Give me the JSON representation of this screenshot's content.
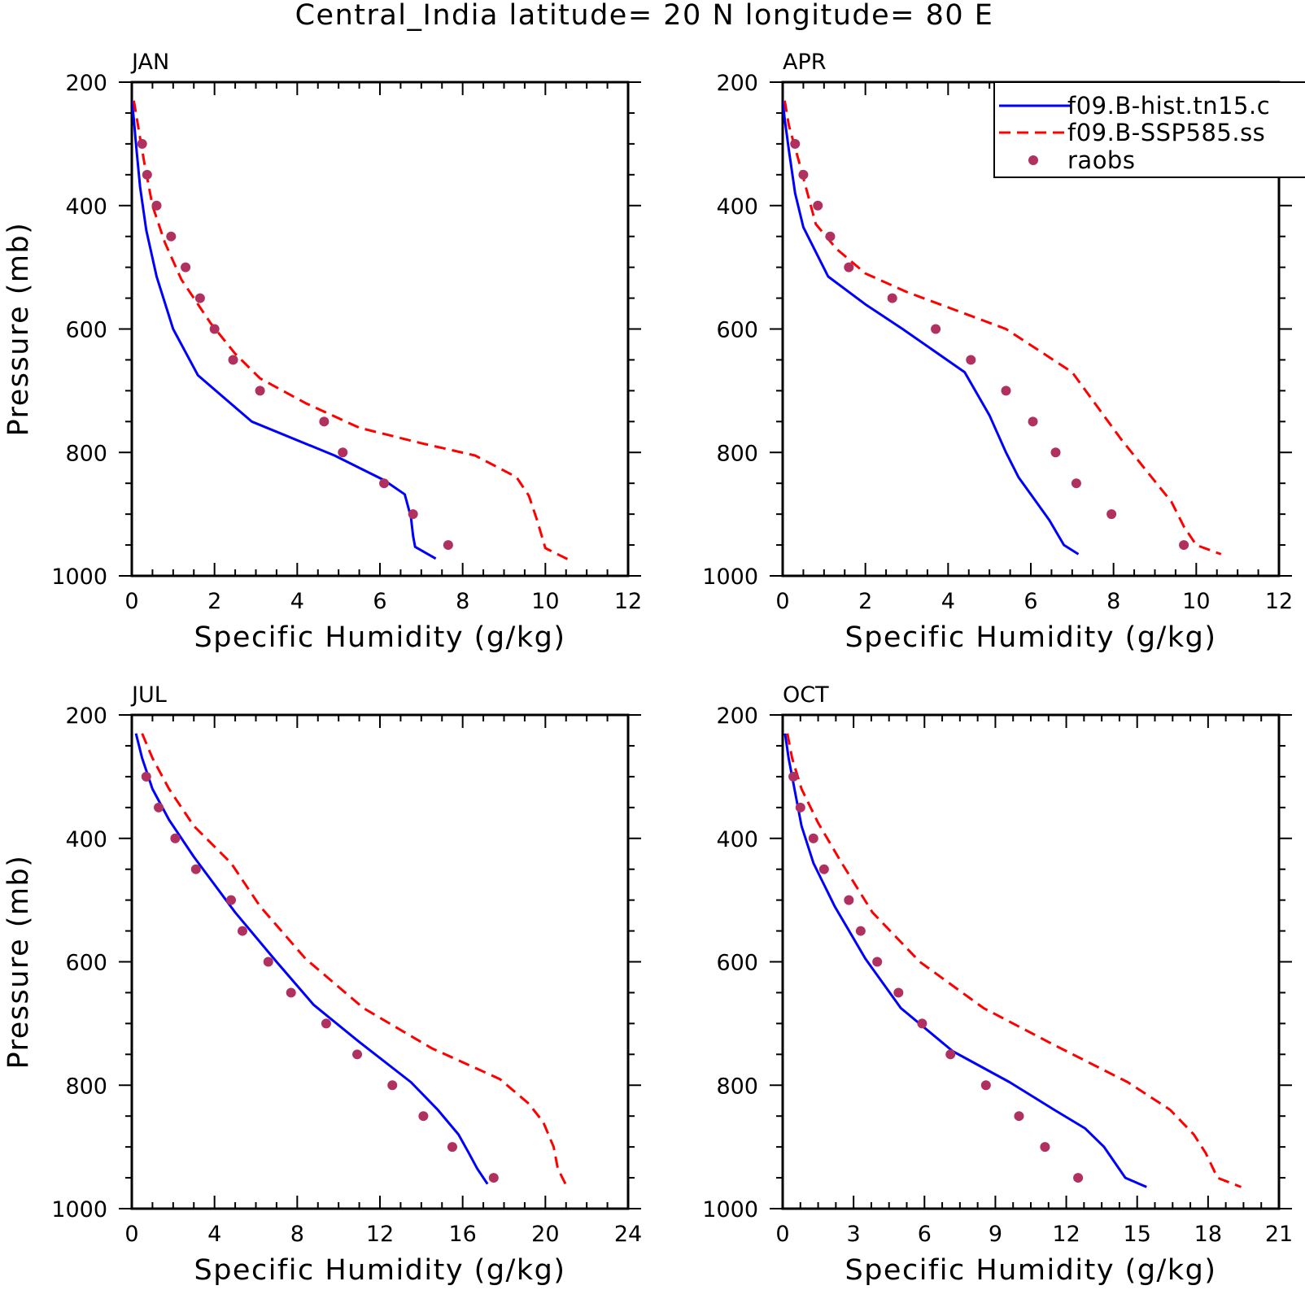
{
  "title": "Central_India  latitude= 20 N longitude= 80 E",
  "legend": {
    "entries": [
      {
        "label": "f09.B-hist.tn15.c",
        "style": "solid",
        "color": "#0000ff"
      },
      {
        "label": "f09.B-SSP585.ss",
        "style": "dashed",
        "color": "#ff0000"
      },
      {
        "label": "raobs",
        "style": "dot",
        "color": "#b03060"
      }
    ]
  },
  "colors": {
    "model_hist": "#0000ff",
    "model_ssp": "#ff0000",
    "obs": "#b03060"
  },
  "chart_data": [
    {
      "type": "line",
      "panel": "JAN",
      "xlabel": "Specific Humidity (g/kg)",
      "ylabel": "Pressure (mb)",
      "xlim": [
        0,
        12
      ],
      "xticks": [
        0,
        2,
        4,
        6,
        8,
        10,
        12
      ],
      "ylim": [
        1000,
        200
      ],
      "yticks": [
        200,
        400,
        600,
        800,
        1000
      ],
      "series": [
        {
          "name": "f09.B-hist.tn15.c",
          "style": "solid",
          "x": [
            0.0,
            0.05,
            0.1,
            0.2,
            0.35,
            0.6,
            1.0,
            1.6,
            2.9,
            4.9,
            6.1,
            6.6,
            6.75,
            6.8,
            6.85,
            7.35
          ],
          "y": [
            230,
            260,
            300,
            370,
            440,
            515,
            600,
            675,
            750,
            805,
            845,
            868,
            905,
            935,
            953,
            972
          ]
        },
        {
          "name": "f09.B-SSP585.ss",
          "style": "dashed",
          "x": [
            0.05,
            0.15,
            0.3,
            0.5,
            0.8,
            1.2,
            1.9,
            2.5,
            3.1,
            4.2,
            5.5,
            7.0,
            8.3,
            9.3,
            9.6,
            9.8,
            10.0,
            10.6
          ],
          "y": [
            230,
            270,
            330,
            400,
            460,
            520,
            590,
            640,
            680,
            720,
            760,
            785,
            805,
            840,
            870,
            910,
            955,
            975
          ]
        },
        {
          "name": "raobs",
          "style": "dot",
          "x": [
            0.25,
            0.37,
            0.6,
            0.95,
            1.3,
            1.65,
            2.0,
            2.45,
            3.1,
            4.65,
            5.1,
            6.1,
            6.8,
            7.65
          ],
          "y": [
            300,
            350,
            400,
            450,
            500,
            550,
            600,
            650,
            700,
            750,
            800,
            850,
            900,
            950
          ]
        }
      ]
    },
    {
      "type": "line",
      "panel": "APR",
      "xlabel": "Specific Humidity (g/kg)",
      "ylabel": "",
      "xlim": [
        0,
        12
      ],
      "xticks": [
        0,
        2,
        4,
        6,
        8,
        10,
        12
      ],
      "ylim": [
        1000,
        200
      ],
      "yticks": [
        200,
        400,
        600,
        800,
        1000
      ],
      "series": [
        {
          "name": "f09.B-hist.tn15.c",
          "style": "solid",
          "x": [
            0.0,
            0.05,
            0.15,
            0.3,
            0.5,
            1.1,
            2.0,
            2.9,
            4.4,
            5.0,
            5.4,
            5.7,
            6.45,
            6.8,
            7.15
          ],
          "y": [
            230,
            260,
            310,
            380,
            435,
            515,
            560,
            600,
            670,
            740,
            800,
            840,
            910,
            950,
            965
          ]
        },
        {
          "name": "f09.B-SSP585.ss",
          "style": "dashed",
          "x": [
            0.05,
            0.15,
            0.4,
            0.6,
            0.8,
            1.3,
            2.0,
            3.0,
            4.0,
            5.4,
            7.0,
            8.2,
            9.4,
            9.7,
            10.0,
            10.6
          ],
          "y": [
            230,
            270,
            330,
            380,
            430,
            470,
            510,
            540,
            565,
            600,
            670,
            780,
            880,
            920,
            950,
            965
          ]
        },
        {
          "name": "raobs",
          "style": "dot",
          "x": [
            0.3,
            0.5,
            0.85,
            1.15,
            1.6,
            2.65,
            3.7,
            4.55,
            5.4,
            6.05,
            6.6,
            7.1,
            7.95,
            9.7
          ],
          "y": [
            300,
            350,
            400,
            450,
            500,
            550,
            600,
            650,
            700,
            750,
            800,
            850,
            900,
            950
          ]
        }
      ]
    },
    {
      "type": "line",
      "panel": "JUL",
      "xlabel": "Specific Humidity (g/kg)",
      "ylabel": "Pressure (mb)",
      "xlim": [
        0,
        24
      ],
      "xticks": [
        0,
        4,
        8,
        12,
        16,
        20,
        24
      ],
      "ylim": [
        1000,
        200
      ],
      "yticks": [
        200,
        400,
        600,
        800,
        1000
      ],
      "series": [
        {
          "name": "f09.B-hist.tn15.c",
          "style": "solid",
          "x": [
            0.2,
            0.5,
            1.0,
            1.8,
            3.0,
            5.0,
            7.0,
            8.8,
            11.0,
            13.5,
            14.8,
            15.8,
            16.3,
            16.7,
            17.2
          ],
          "y": [
            230,
            270,
            320,
            370,
            430,
            520,
            600,
            670,
            730,
            795,
            840,
            880,
            910,
            935,
            960
          ]
        },
        {
          "name": "f09.B-SSP585.ss",
          "style": "dashed",
          "x": [
            0.5,
            1.0,
            1.8,
            3.0,
            4.8,
            6.2,
            8.4,
            11.2,
            14.5,
            17.8,
            19.2,
            19.9,
            20.4,
            20.6,
            21.0
          ],
          "y": [
            230,
            270,
            320,
            380,
            440,
            510,
            595,
            675,
            740,
            790,
            830,
            860,
            900,
            935,
            962
          ]
        },
        {
          "name": "raobs",
          "style": "dot",
          "x": [
            0.7,
            1.3,
            2.1,
            3.1,
            4.8,
            5.35,
            6.6,
            7.7,
            9.4,
            10.9,
            12.6,
            14.1,
            15.5,
            17.5
          ],
          "y": [
            300,
            350,
            400,
            450,
            500,
            550,
            600,
            650,
            700,
            750,
            800,
            850,
            900,
            950
          ]
        }
      ]
    },
    {
      "type": "line",
      "panel": "OCT",
      "xlabel": "Specific Humidity (g/kg)",
      "ylabel": "",
      "xlim": [
        0,
        21
      ],
      "xticks": [
        0,
        3,
        6,
        9,
        12,
        15,
        18,
        21
      ],
      "ylim": [
        1000,
        200
      ],
      "yticks": [
        200,
        400,
        600,
        800,
        1000
      ],
      "series": [
        {
          "name": "f09.B-hist.tn15.c",
          "style": "solid",
          "x": [
            0.1,
            0.25,
            0.5,
            0.8,
            1.3,
            2.2,
            3.5,
            5.0,
            7.2,
            9.6,
            11.5,
            12.8,
            13.6,
            14.5,
            15.4
          ],
          "y": [
            230,
            270,
            320,
            380,
            440,
            510,
            595,
            675,
            745,
            795,
            840,
            870,
            900,
            950,
            965
          ]
        },
        {
          "name": "f09.B-SSP585.ss",
          "style": "dashed",
          "x": [
            0.2,
            0.4,
            0.8,
            1.5,
            2.5,
            3.8,
            5.8,
            8.5,
            11.5,
            14.6,
            16.4,
            17.4,
            17.9,
            18.4,
            19.4
          ],
          "y": [
            230,
            270,
            320,
            375,
            440,
            520,
            600,
            675,
            735,
            795,
            840,
            880,
            910,
            950,
            965
          ]
        },
        {
          "name": "raobs",
          "style": "dot",
          "x": [
            0.45,
            0.75,
            1.3,
            1.75,
            2.8,
            3.3,
            4.0,
            4.9,
            5.9,
            7.1,
            8.6,
            10.0,
            11.1,
            12.5
          ],
          "y": [
            300,
            350,
            400,
            450,
            500,
            550,
            600,
            650,
            700,
            750,
            800,
            850,
            900,
            950
          ]
        }
      ]
    }
  ]
}
